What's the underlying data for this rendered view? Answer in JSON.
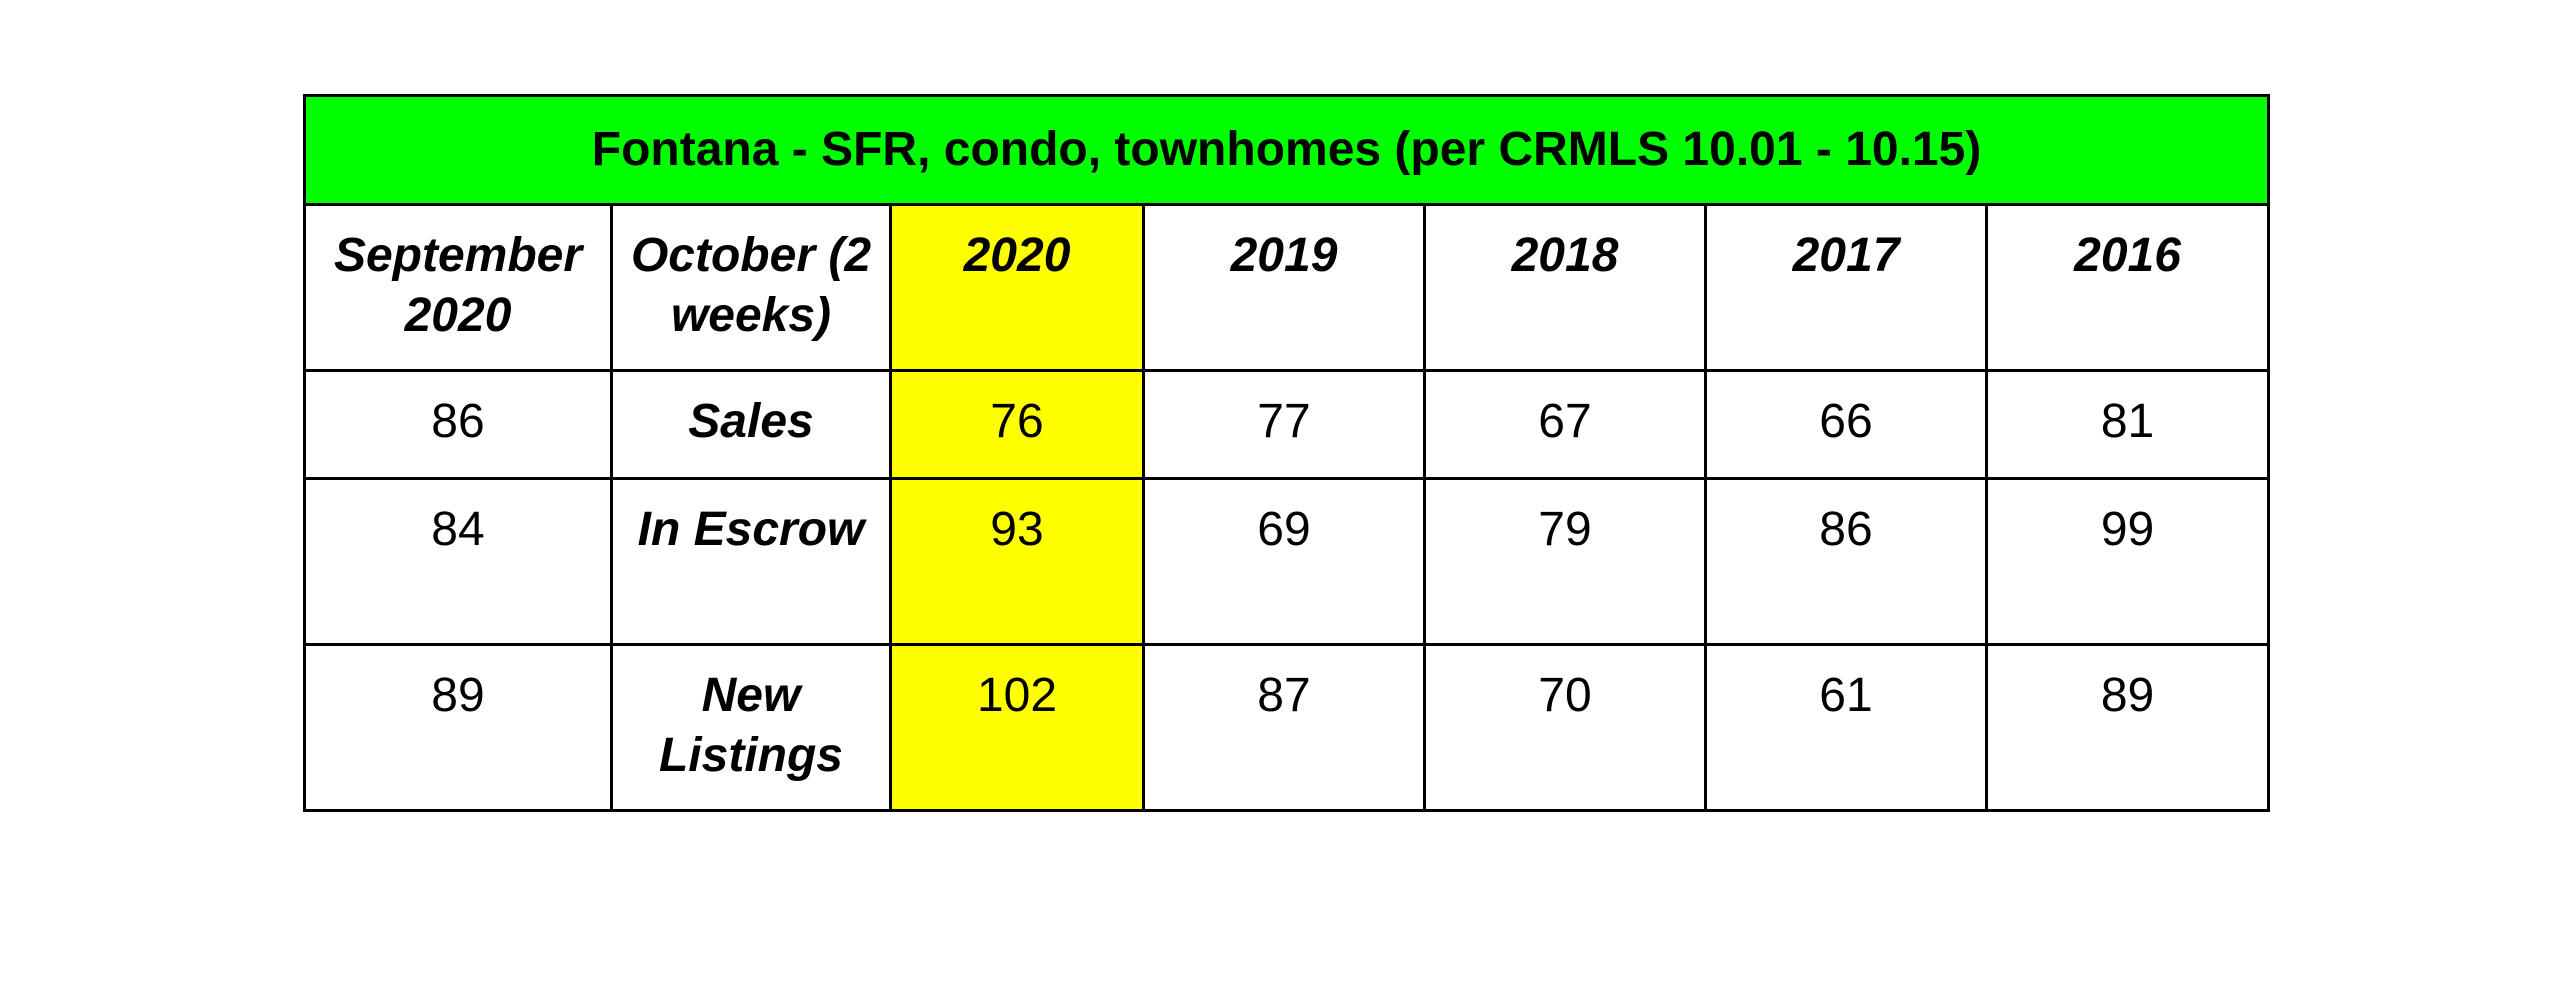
{
  "table": {
    "title": "Fontana - SFR, condo, townhomes (per CRMLS 10.01 - 10.15)",
    "headers": [
      "September 2020",
      "October (2 weeks)",
      "2020",
      "2019",
      "2018",
      "2017",
      "2016"
    ],
    "rows": [
      {
        "september_2020": "86",
        "label": "Sales",
        "values": [
          "76",
          "77",
          "67",
          "66",
          "81"
        ]
      },
      {
        "september_2020": "84",
        "label": "In Escrow",
        "values": [
          "93",
          "69",
          "79",
          "86",
          "99"
        ]
      },
      {
        "september_2020": "89",
        "label": "New Listings",
        "values": [
          "102",
          "87",
          "70",
          "61",
          "89"
        ]
      }
    ],
    "colors": {
      "title_background": "#00ff00",
      "highlight_column": "#ffff00",
      "border": "#000000"
    }
  }
}
